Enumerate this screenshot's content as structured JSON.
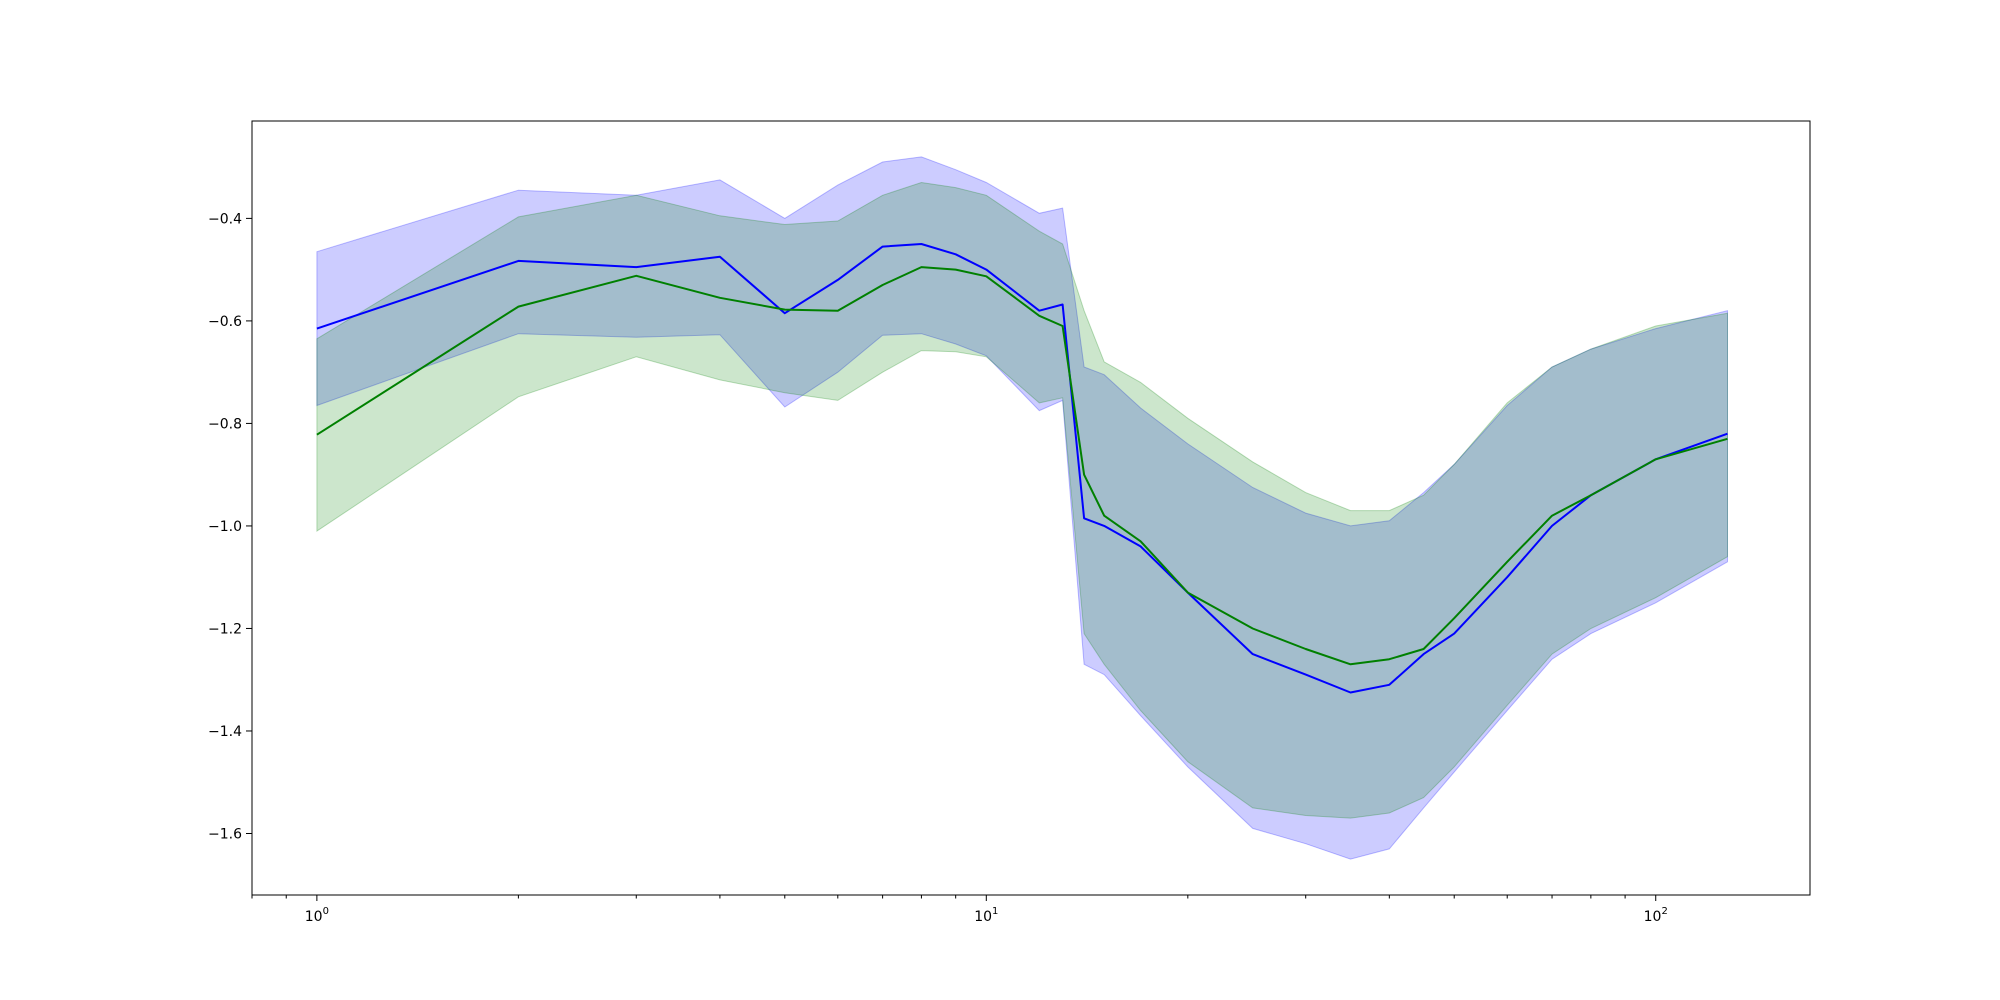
{
  "chart_data": {
    "type": "line",
    "title": "",
    "xlabel": "",
    "ylabel": "",
    "x_scale": "log",
    "xlim": [
      0.8,
      170
    ],
    "ylim": [
      -1.72,
      -0.21
    ],
    "grid": false,
    "legend": "none",
    "x_ticks": [
      {
        "value": 1,
        "label_base": "10",
        "label_exp": "0"
      },
      {
        "value": 10,
        "label_base": "10",
        "label_exp": "1"
      },
      {
        "value": 100,
        "label_base": "10",
        "label_exp": "2"
      }
    ],
    "y_ticks": [
      {
        "value": -0.4,
        "label": "−0.4"
      },
      {
        "value": -0.6,
        "label": "−0.6"
      },
      {
        "value": -0.8,
        "label": "−0.8"
      },
      {
        "value": -1.0,
        "label": "−1.0"
      },
      {
        "value": -1.2,
        "label": "−1.2"
      },
      {
        "value": -1.4,
        "label": "−1.4"
      },
      {
        "value": -1.6,
        "label": "−1.6"
      }
    ],
    "series": [
      {
        "color": "#0000ff",
        "band_color": "#0000ff",
        "band_opacity": 0.2,
        "x": [
          1,
          2,
          3,
          4,
          5,
          6,
          7,
          8,
          9,
          10,
          12,
          13,
          14,
          15,
          17,
          20,
          25,
          30,
          35,
          40,
          45,
          50,
          60,
          70,
          80,
          100,
          128
        ],
        "values": [
          -0.615,
          -0.483,
          -0.495,
          -0.475,
          -0.585,
          -0.52,
          -0.455,
          -0.45,
          -0.47,
          -0.5,
          -0.58,
          -0.568,
          -0.985,
          -1.0,
          -1.04,
          -1.13,
          -1.25,
          -1.29,
          -1.325,
          -1.31,
          -1.25,
          -1.21,
          -1.1,
          -1.0,
          -0.94,
          -0.87,
          -0.82
        ],
        "lower": [
          -0.765,
          -0.625,
          -0.632,
          -0.627,
          -0.768,
          -0.7,
          -0.628,
          -0.625,
          -0.645,
          -0.668,
          -0.775,
          -0.755,
          -1.27,
          -1.29,
          -1.37,
          -1.47,
          -1.59,
          -1.62,
          -1.65,
          -1.63,
          -1.55,
          -1.48,
          -1.36,
          -1.26,
          -1.21,
          -1.15,
          -1.07
        ],
        "upper": [
          -0.465,
          -0.345,
          -0.355,
          -0.325,
          -0.4,
          -0.335,
          -0.29,
          -0.28,
          -0.305,
          -0.33,
          -0.39,
          -0.38,
          -0.69,
          -0.705,
          -0.77,
          -0.84,
          -0.925,
          -0.975,
          -1.0,
          -0.99,
          -0.935,
          -0.88,
          -0.765,
          -0.69,
          -0.655,
          -0.615,
          -0.58
        ]
      },
      {
        "color": "#008000",
        "band_color": "#008000",
        "band_opacity": 0.2,
        "x": [
          1,
          2,
          3,
          4,
          5,
          6,
          7,
          8,
          9,
          10,
          12,
          13,
          14,
          15,
          17,
          20,
          25,
          30,
          35,
          40,
          45,
          50,
          60,
          70,
          80,
          100,
          128
        ],
        "values": [
          -0.822,
          -0.572,
          -0.512,
          -0.555,
          -0.578,
          -0.58,
          -0.53,
          -0.495,
          -0.5,
          -0.513,
          -0.59,
          -0.61,
          -0.9,
          -0.98,
          -1.03,
          -1.13,
          -1.2,
          -1.24,
          -1.27,
          -1.26,
          -1.24,
          -1.18,
          -1.07,
          -0.98,
          -0.94,
          -0.87,
          -0.83
        ],
        "lower": [
          -1.01,
          -0.748,
          -0.67,
          -0.715,
          -0.74,
          -0.755,
          -0.7,
          -0.658,
          -0.66,
          -0.67,
          -0.76,
          -0.75,
          -1.21,
          -1.27,
          -1.36,
          -1.46,
          -1.55,
          -1.565,
          -1.57,
          -1.56,
          -1.53,
          -1.47,
          -1.35,
          -1.25,
          -1.2,
          -1.14,
          -1.06
        ],
        "upper": [
          -0.635,
          -0.397,
          -0.355,
          -0.395,
          -0.412,
          -0.405,
          -0.355,
          -0.33,
          -0.34,
          -0.355,
          -0.425,
          -0.45,
          -0.58,
          -0.68,
          -0.72,
          -0.79,
          -0.875,
          -0.935,
          -0.97,
          -0.97,
          -0.94,
          -0.88,
          -0.76,
          -0.69,
          -0.655,
          -0.61,
          -0.585
        ]
      }
    ]
  }
}
